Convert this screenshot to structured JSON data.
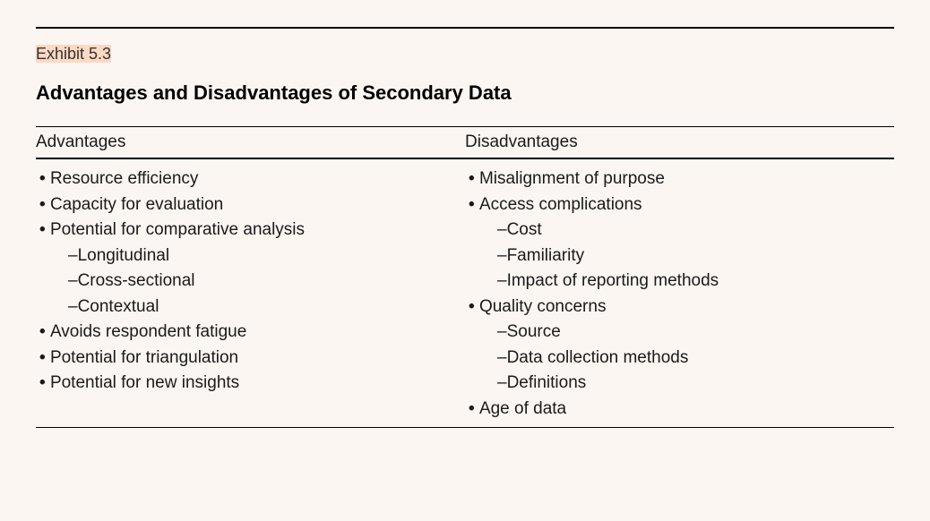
{
  "exhibit": {
    "label_prefix": "Exhibit ",
    "label_number": "5.3"
  },
  "title": "Advantages and Disadvantages of Secondary Data",
  "columns": {
    "left": {
      "header": "Advantages",
      "items": [
        {
          "type": "bullet",
          "text": "Resource efficiency"
        },
        {
          "type": "bullet",
          "text": "Capacity for evaluation"
        },
        {
          "type": "bullet",
          "text": "Potential for comparative analysis"
        },
        {
          "type": "sub",
          "text": "Longitudinal"
        },
        {
          "type": "sub",
          "text": "Cross-sectional"
        },
        {
          "type": "sub",
          "text": "Contextual"
        },
        {
          "type": "bullet",
          "text": "Avoids respondent fatigue"
        },
        {
          "type": "bullet",
          "text": "Potential for triangulation"
        },
        {
          "type": "bullet",
          "text": "Potential for new insights"
        }
      ]
    },
    "right": {
      "header": "Disadvantages",
      "items": [
        {
          "type": "bullet",
          "text": "Misalignment of purpose"
        },
        {
          "type": "bullet",
          "text": "Access complications"
        },
        {
          "type": "sub",
          "text": "Cost"
        },
        {
          "type": "sub",
          "text": "Familiarity"
        },
        {
          "type": "sub",
          "text": "Impact of reporting methods"
        },
        {
          "type": "bullet",
          "text": "Quality concerns"
        },
        {
          "type": "sub",
          "text": "Source"
        },
        {
          "type": "sub",
          "text": "Data collection methods"
        },
        {
          "type": "sub",
          "text": "Definitions"
        },
        {
          "type": "bullet",
          "text": "Age of data"
        }
      ]
    }
  },
  "styling": {
    "background_color": "#fbf6f2",
    "text_color": "#1a1a1a",
    "rule_color": "#000000",
    "highlight_color": "#fcd9c2",
    "body_fontsize": 19,
    "title_fontsize": 22,
    "label_fontsize": 18,
    "line_height": 1.5,
    "font_family": "Arial, Helvetica, sans-serif"
  }
}
